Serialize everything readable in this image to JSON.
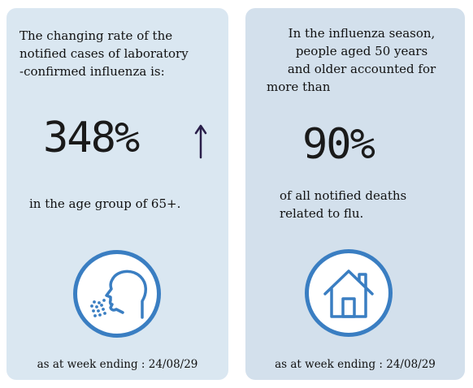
{
  "cards": [
    {
      "intro_lines": [
        "The changing rate of the",
        "notified cases of laboratory",
        "-confirmed influenza is:"
      ],
      "stat": "348%",
      "stat_icon": "up-arrow-icon",
      "detail_lines": [
        "in the age group of 65+."
      ],
      "icon": "cough-sneeze-icon",
      "footer": "as at week ending : 24/08/29"
    },
    {
      "intro_lines": [
        "In the influenza season,",
        "people aged 50 years",
        "and older accounted for",
        "more than"
      ],
      "stat": "90%",
      "detail_lines": [
        "of all notified deaths",
        "related to flu."
      ],
      "icon": "house-icon",
      "footer": "as at week ending : 24/08/29"
    }
  ],
  "colors": {
    "left_card": "#dae7f1",
    "right_card": "#d3e0ec",
    "icon_stroke": "#3a7ec2",
    "arrow": "#2a1f4a"
  }
}
